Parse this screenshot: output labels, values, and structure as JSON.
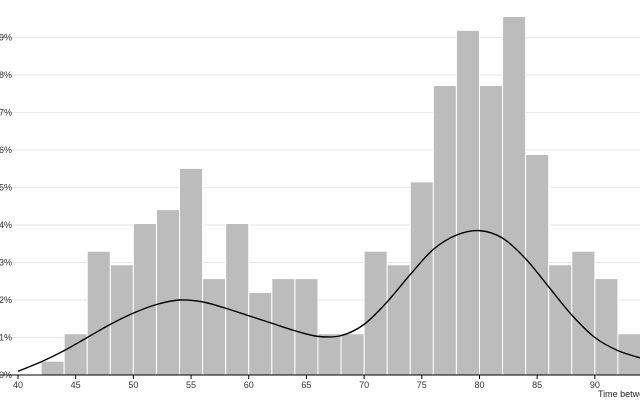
{
  "chart_data": {
    "type": "bar",
    "subtype": "histogram-with-density",
    "xlabel": "Time betwe",
    "ylabel": "",
    "xlim": [
      40,
      94
    ],
    "ylim": [
      0,
      0.1
    ],
    "bin_width": 2,
    "grid": true,
    "x_ticks": [
      40,
      45,
      50,
      55,
      60,
      65,
      70,
      75,
      80,
      85,
      90
    ],
    "x_tick_labels": [
      "40",
      "45",
      "50",
      "55",
      "60",
      "65",
      "70",
      "75",
      "80",
      "85",
      "90"
    ],
    "y_ticks": [
      0,
      0.01,
      0.02,
      0.03,
      0.04,
      0.05,
      0.06,
      0.07,
      0.08,
      0.09
    ],
    "y_tick_labels": [
      "0%",
      "1%",
      "2%",
      "3%",
      "4%",
      "5%",
      "6%",
      "7%",
      "8%",
      "9%"
    ],
    "bins": [
      {
        "x0": 42,
        "x1": 44,
        "value": 0.0037
      },
      {
        "x0": 44,
        "x1": 46,
        "value": 0.011
      },
      {
        "x0": 46,
        "x1": 48,
        "value": 0.033
      },
      {
        "x0": 48,
        "x1": 50,
        "value": 0.0294
      },
      {
        "x0": 50,
        "x1": 52,
        "value": 0.0404
      },
      {
        "x0": 52,
        "x1": 54,
        "value": 0.0441
      },
      {
        "x0": 54,
        "x1": 56,
        "value": 0.0551
      },
      {
        "x0": 56,
        "x1": 58,
        "value": 0.0257
      },
      {
        "x0": 58,
        "x1": 60,
        "value": 0.0404
      },
      {
        "x0": 60,
        "x1": 62,
        "value": 0.022
      },
      {
        "x0": 62,
        "x1": 64,
        "value": 0.0257
      },
      {
        "x0": 64,
        "x1": 66,
        "value": 0.0257
      },
      {
        "x0": 66,
        "x1": 68,
        "value": 0.011
      },
      {
        "x0": 68,
        "x1": 70,
        "value": 0.011
      },
      {
        "x0": 70,
        "x1": 72,
        "value": 0.033
      },
      {
        "x0": 72,
        "x1": 74,
        "value": 0.0294
      },
      {
        "x0": 74,
        "x1": 76,
        "value": 0.0515
      },
      {
        "x0": 76,
        "x1": 78,
        "value": 0.0772
      },
      {
        "x0": 78,
        "x1": 80,
        "value": 0.0919
      },
      {
        "x0": 80,
        "x1": 82,
        "value": 0.0772
      },
      {
        "x0": 82,
        "x1": 84,
        "value": 0.0956
      },
      {
        "x0": 84,
        "x1": 86,
        "value": 0.0588
      },
      {
        "x0": 86,
        "x1": 88,
        "value": 0.0294
      },
      {
        "x0": 88,
        "x1": 90,
        "value": 0.033
      },
      {
        "x0": 90,
        "x1": 92,
        "value": 0.0257
      },
      {
        "x0": 92,
        "x1": 94,
        "value": 0.011
      }
    ],
    "density_curve": {
      "x": [
        40,
        42,
        44,
        46,
        48,
        50,
        52,
        54,
        56,
        58,
        60,
        62,
        64,
        66,
        68,
        70,
        72,
        74,
        76,
        78,
        80,
        82,
        84,
        86,
        88,
        90,
        92,
        94
      ],
      "y": [
        0.001,
        0.0035,
        0.0065,
        0.01,
        0.0135,
        0.0165,
        0.0188,
        0.02,
        0.0195,
        0.0178,
        0.0158,
        0.0138,
        0.0118,
        0.0103,
        0.0105,
        0.0135,
        0.0195,
        0.0268,
        0.0335,
        0.0373,
        0.0385,
        0.0365,
        0.031,
        0.0235,
        0.016,
        0.01,
        0.0065,
        0.0045
      ]
    },
    "colors": {
      "bar_fill": "#bcbcbc",
      "bar_stroke": "#ffffff",
      "curve": "#000000",
      "grid": "#e6e6e6",
      "axis": "#000000"
    }
  }
}
